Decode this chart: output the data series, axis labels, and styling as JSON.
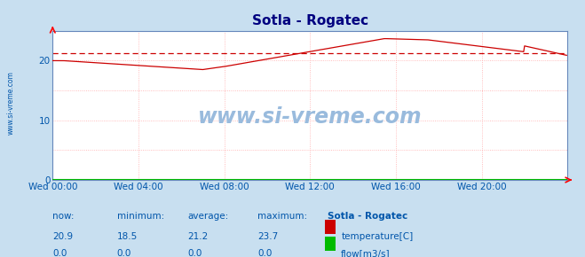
{
  "title": "Sotla - Rogatec",
  "bg_color": "#c8dff0",
  "plot_bg_color": "#ffffff",
  "title_color": "#000080",
  "axis_label_color": "#0055aa",
  "grid_color": "#ffaaaa",
  "temp_line_color": "#cc0000",
  "flow_line_color": "#00bb00",
  "avg_line_color": "#cc0000",
  "spine_color": "#6688bb",
  "avg_value": 21.2,
  "ylim": [
    0,
    25
  ],
  "yticks": [
    0,
    10,
    20
  ],
  "xtick_labels": [
    "Wed 00:00",
    "Wed 04:00",
    "Wed 08:00",
    "Wed 12:00",
    "Wed 16:00",
    "Wed 20:00"
  ],
  "xtick_positions": [
    0,
    96,
    192,
    288,
    384,
    480
  ],
  "total_points": 576,
  "watermark_text": "www.si-vreme.com",
  "watermark_color": "#99bbdd",
  "left_label": "www.si-vreme.com",
  "stats_labels": [
    "now:",
    "minimum:",
    "average:",
    "maximum:",
    "Sotla - Rogatec"
  ],
  "stats_temp": [
    "20.9",
    "18.5",
    "21.2",
    "23.7"
  ],
  "stats_flow": [
    "0.0",
    "0.0",
    "0.0",
    "0.0"
  ],
  "legend_items": [
    "temperature[C]",
    "flow[m3/s]"
  ],
  "legend_colors": [
    "#cc0000",
    "#00bb00"
  ]
}
